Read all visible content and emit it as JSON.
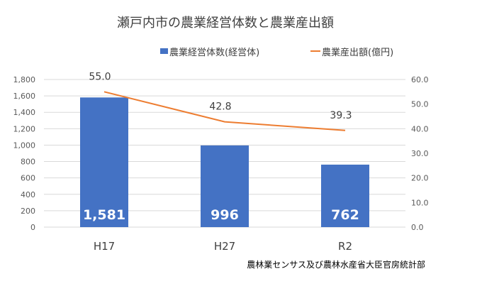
{
  "chart_data": {
    "type": "bar+line",
    "title": "瀬戸内市の農業経営体数と農業産出額",
    "categories": [
      "H17",
      "H27",
      "R2"
    ],
    "series": [
      {
        "name": "農業経営体数(経営体)",
        "type": "bar",
        "axis": "left",
        "values": [
          1581,
          996,
          762
        ],
        "labels": [
          "1,581",
          "996",
          "762"
        ],
        "color": "#4472C4"
      },
      {
        "name": "農業産出額(億円)",
        "type": "line",
        "axis": "right",
        "values": [
          55.0,
          42.8,
          39.3
        ],
        "labels": [
          "55.0",
          "42.8",
          "39.3"
        ],
        "color": "#ED7D31"
      }
    ],
    "y_left": {
      "min": 0,
      "max": 1800,
      "ticks": [
        "0",
        "200",
        "400",
        "600",
        "800",
        "1,000",
        "1,200",
        "1,400",
        "1,600",
        "1,800"
      ]
    },
    "y_right": {
      "min": 0,
      "max": 60,
      "ticks": [
        "0.0",
        "10.0",
        "20.0",
        "30.0",
        "40.0",
        "50.0",
        "60.0"
      ]
    },
    "grid": true,
    "legend": "top",
    "source": "農林業センサス及び農林水産省大臣官房統計部"
  }
}
